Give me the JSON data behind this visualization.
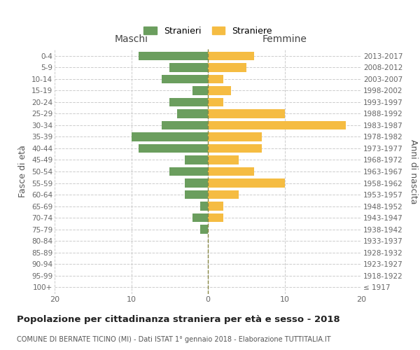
{
  "age_groups": [
    "100+",
    "95-99",
    "90-94",
    "85-89",
    "80-84",
    "75-79",
    "70-74",
    "65-69",
    "60-64",
    "55-59",
    "50-54",
    "45-49",
    "40-44",
    "35-39",
    "30-34",
    "25-29",
    "20-24",
    "15-19",
    "10-14",
    "5-9",
    "0-4"
  ],
  "birth_years": [
    "≤ 1917",
    "1918-1922",
    "1923-1927",
    "1928-1932",
    "1933-1937",
    "1938-1942",
    "1943-1947",
    "1948-1952",
    "1953-1957",
    "1958-1962",
    "1963-1967",
    "1968-1972",
    "1973-1977",
    "1978-1982",
    "1983-1987",
    "1988-1992",
    "1993-1997",
    "1998-2002",
    "2003-2007",
    "2008-2012",
    "2013-2017"
  ],
  "males": [
    0,
    0,
    0,
    0,
    0,
    1,
    2,
    1,
    3,
    3,
    5,
    3,
    9,
    10,
    6,
    4,
    5,
    2,
    6,
    5,
    9
  ],
  "females": [
    0,
    0,
    0,
    0,
    0,
    0,
    2,
    2,
    4,
    10,
    6,
    4,
    7,
    7,
    18,
    10,
    2,
    3,
    2,
    5,
    6
  ],
  "male_color": "#6b9e5e",
  "female_color": "#f5bc42",
  "grid_color": "#cccccc",
  "center_line_color": "#888844",
  "bg_color": "#ffffff",
  "title": "Popolazione per cittadinanza straniera per età e sesso - 2018",
  "subtitle": "COMUNE DI BERNATE TICINO (MI) - Dati ISTAT 1° gennaio 2018 - Elaborazione TUTTITALIA.IT",
  "ylabel_left": "Fasce di età",
  "ylabel_right": "Anni di nascita",
  "xlabel_male": "Maschi",
  "xlabel_female": "Femmine",
  "legend_male": "Stranieri",
  "legend_female": "Straniere",
  "xlim": 20
}
